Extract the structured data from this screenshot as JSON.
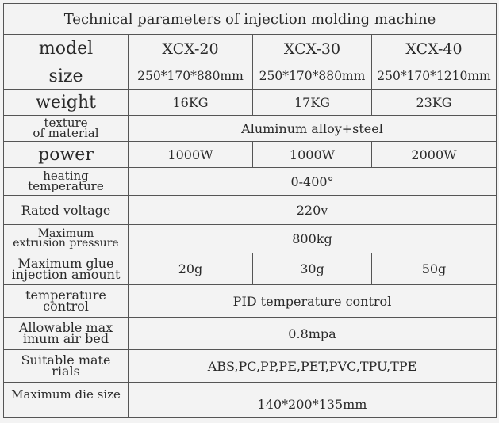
{
  "title": "Technical parameters of injection molding machine",
  "models": [
    "XCX-20",
    "XCX-30",
    "XCX-40"
  ],
  "rows": {
    "model": {
      "label": "model"
    },
    "size": {
      "label": "size",
      "values": [
        "250*170*880mm",
        "250*170*880mm",
        "250*170*1210mm"
      ]
    },
    "weight": {
      "label": "weight",
      "values": [
        "16KG",
        "17KG",
        "23KG"
      ]
    },
    "texture": {
      "label1": "texture",
      "label2": "of material",
      "value": "Aluminum alloy+steel"
    },
    "power": {
      "label": "power",
      "values": [
        "1000W",
        "1000W",
        "2000W"
      ]
    },
    "heating": {
      "label1": "heating",
      "label2": "temperature",
      "value": "0-400°"
    },
    "voltage": {
      "label": "Rated voltage",
      "value": "220v"
    },
    "extrusion": {
      "label1": "Maximum",
      "label2": "extrusion pressure",
      "value": "800kg"
    },
    "glue": {
      "label1": "Maximum glue",
      "label2": "injection amount",
      "values": [
        "20g",
        "30g",
        "50g"
      ]
    },
    "tempcontrol": {
      "label1": "temperature",
      "label2": "control",
      "value": "PID temperature control"
    },
    "airbed": {
      "label1": "Allowable max",
      "label2": "imum air bed",
      "value": "0.8mpa"
    },
    "materials": {
      "label1": "Suitable mate",
      "label2": "rials",
      "value": "ABS,PC,PP,PE,PET,PVC,TPU,TPE"
    },
    "diesize": {
      "label": "Maximum die size",
      "value": "140*200*135mm"
    }
  }
}
